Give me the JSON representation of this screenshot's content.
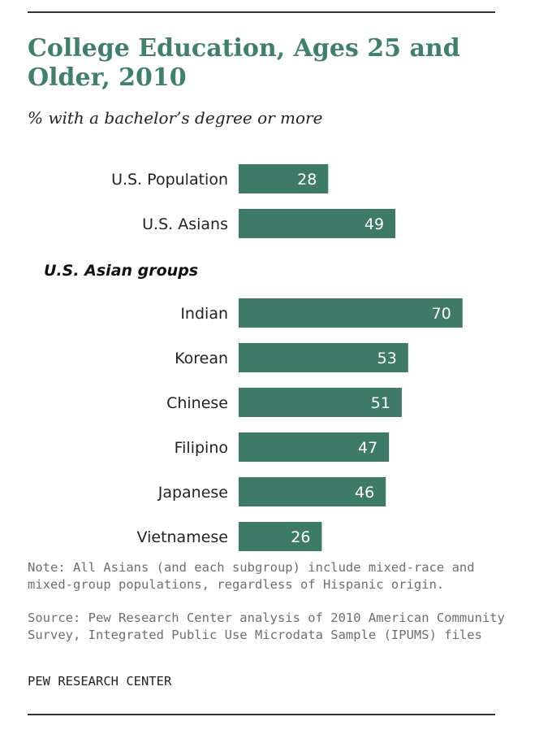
{
  "title": "College Education, Ages 25 and Older, 2010",
  "subtitle": "% with a bachelor’s degree or more",
  "note": "Note: All Asians (and each subgroup) include mixed-race and mixed-group populations, regardless of Hispanic origin.",
  "source": "Source: Pew Research Center analysis of 2010 American Community Survey, Integrated Public Use Microdata Sample (IPUMS) files",
  "credit": "PEW RESEARCH CENTER",
  "colors": {
    "bar": "#3d7a67",
    "title": "#3f7f6c"
  },
  "chart_data": {
    "type": "bar",
    "orientation": "horizontal",
    "groups": [
      {
        "label": "",
        "categories": [
          "U.S. Population",
          "U.S. Asians"
        ],
        "values": [
          28,
          49
        ]
      },
      {
        "label": "U.S. Asian groups",
        "categories": [
          "Indian",
          "Korean",
          "Chinese",
          "Filipino",
          "Japanese",
          "Vietnamese"
        ],
        "values": [
          70,
          53,
          51,
          47,
          46,
          26
        ]
      }
    ],
    "xlim": [
      0,
      70
    ],
    "axes_visible": false,
    "grid": false,
    "data_labels": "inside-end"
  }
}
